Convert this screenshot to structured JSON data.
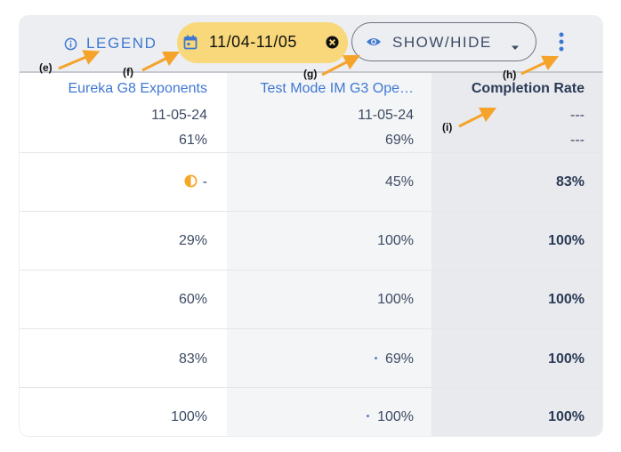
{
  "toolbar": {
    "legend_label": "LEGEND",
    "date_range": "11/04-11/05",
    "show_hide_label": "SHOW/HIDE"
  },
  "columns": [
    {
      "title": "Eureka G8 Exponents",
      "date": "11-05-24",
      "pct": "61%"
    },
    {
      "title": "Test Mode IM G3 Ope…",
      "date": "11-05-24",
      "pct": "69%"
    },
    {
      "title": "Completion Rate",
      "date": "---",
      "pct": "---"
    }
  ],
  "rows": [
    {
      "a": "-",
      "a_icon": "half-circle-icon",
      "b": "45%",
      "c": "83%"
    },
    {
      "a": "29%",
      "b": "100%",
      "c": "100%"
    },
    {
      "a": "60%",
      "b": "100%",
      "c": "100%"
    },
    {
      "a": "83%",
      "b": "69%",
      "b_dot": true,
      "c": "100%"
    },
    {
      "a": "100%",
      "b": "100%",
      "b_dot": true,
      "c": "100%"
    }
  ],
  "annotations": {
    "e": "(e)",
    "f": "(f)",
    "g": "(g)",
    "h": "(h)",
    "i": "(i)"
  },
  "colors": {
    "accent": "#3f78d1",
    "chip": "#f8d87a",
    "arrow": "#f5a32a",
    "status_half": "#f5a623"
  }
}
